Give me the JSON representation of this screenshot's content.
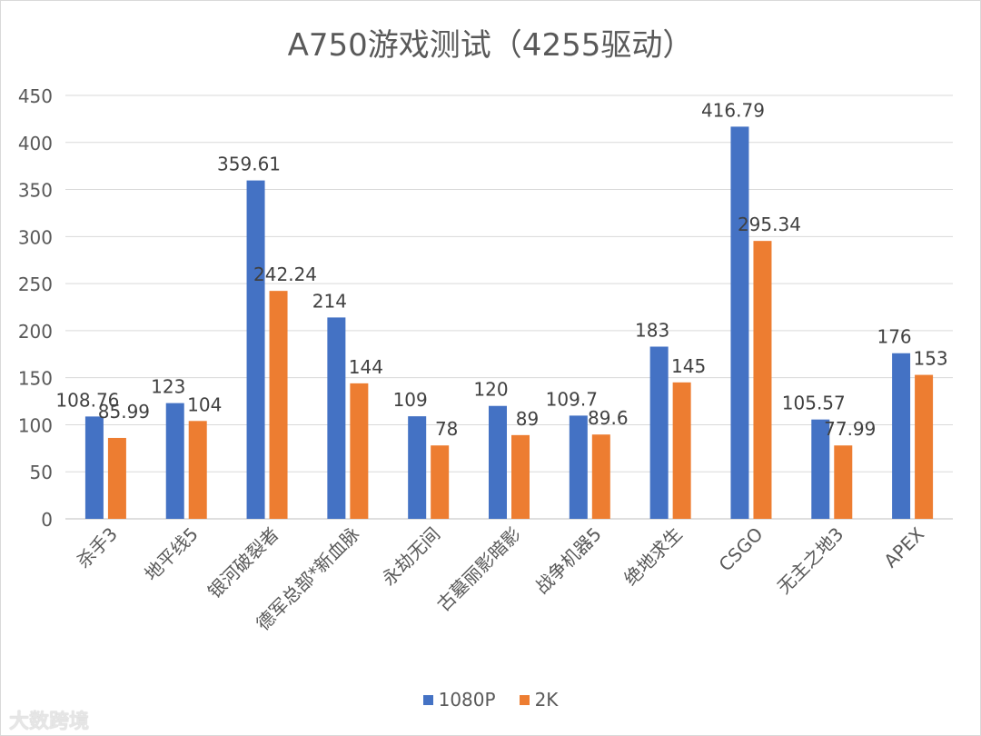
{
  "chart_data": {
    "type": "bar",
    "title": "A750游戏测试（4255驱动）",
    "categories": [
      "杀手3",
      "地平线5",
      "银河破裂者",
      "德军总部*新血脉",
      "永劫无间",
      "古墓丽影暗影",
      "战争机器5",
      "绝地求生",
      "CSGO",
      "无主之地3",
      "APEX"
    ],
    "series": [
      {
        "name": "1080P",
        "color": "#4472C4",
        "values": [
          108.76,
          123,
          359.61,
          214,
          109,
          120,
          109.7,
          183,
          416.79,
          105.57,
          176
        ],
        "labels": [
          "108.76",
          "123",
          "359.61",
          "214",
          "109",
          "120",
          "109.7",
          "183",
          "416.79",
          "105.57",
          "176"
        ]
      },
      {
        "name": "2K",
        "color": "#ED7D31",
        "values": [
          85.99,
          104,
          242.24,
          144,
          78,
          89,
          89.6,
          145,
          295.34,
          77.99,
          153
        ],
        "labels": [
          "85.99",
          "104",
          "242.24",
          "144",
          "78",
          "89",
          "89.6",
          "145",
          "295.34",
          "77.99",
          "153"
        ]
      }
    ],
    "ylim": [
      0,
      450
    ],
    "yticks": [
      0,
      50,
      100,
      150,
      200,
      250,
      300,
      350,
      400,
      450
    ],
    "grid": true,
    "legend_position": "bottom"
  },
  "watermark": "大数跨境"
}
